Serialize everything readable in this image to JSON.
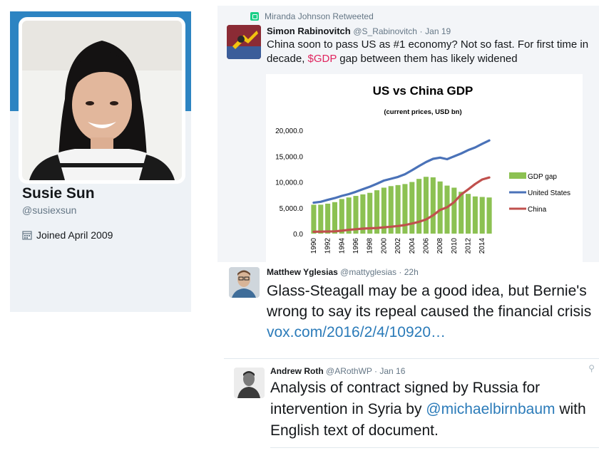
{
  "profile": {
    "name": "Susie Sun",
    "handle": "@susiexsun",
    "joined": "Joined April 2009",
    "banner_color": "#2d84c2"
  },
  "tweet1": {
    "retweet_label": "Miranda Johnson Retweeted",
    "author": "Simon Rabinovitch",
    "handle": "@S_Rabinovitch",
    "date": "Jan 19",
    "text_before": "China soon to pass US as #1 economy? Not so fast. For first time in decade, ",
    "cashtag": "$GDP",
    "text_after": " gap between them has likely widened",
    "cashtag_color": "#e0245e"
  },
  "tweet2": {
    "author": "Matthew Yglesias",
    "handle": "@mattyglesias",
    "date": "22h",
    "text": "Glass-Steagall may be a good idea, but Bernie's wrong to say its repeal caused the financial crisis ",
    "link": "vox.com/2016/2/4/10920…"
  },
  "tweet3": {
    "author": "Andrew Roth",
    "handle": "@ARothWP",
    "date": "Jan 16",
    "text_before": "Analysis of contract signed by Russia for intervention in Syria by ",
    "mention": "@michaelbirnbaum",
    "text_after": " with English text of document."
  },
  "chart_data": {
    "type": "bar",
    "title": "US vs China GDP",
    "subtitle": "(current prices, USD bn)",
    "x": [
      1990,
      1991,
      1992,
      1993,
      1994,
      1995,
      1996,
      1997,
      1998,
      1999,
      2000,
      2001,
      2002,
      2003,
      2004,
      2005,
      2006,
      2007,
      2008,
      2009,
      2010,
      2011,
      2012,
      2013,
      2014,
      2015
    ],
    "tick_labels": [
      "1990",
      "1992",
      "1994",
      "1996",
      "1998",
      "2000",
      "2002",
      "2004",
      "2006",
      "2008",
      "2010",
      "2012",
      "2014"
    ],
    "y_tick_labels": [
      "20,000.0",
      "15,000.0",
      "10,000.0",
      "5,000.0",
      "0.0"
    ],
    "ylim": [
      0,
      20000
    ],
    "legend_position": "right",
    "series": [
      {
        "name": "GDP gap",
        "type": "bar",
        "color": "#8cc152",
        "values": [
          5600,
          5600,
          5800,
          6100,
          6700,
          7000,
          7300,
          7600,
          7900,
          8400,
          8900,
          9200,
          9400,
          9600,
          10000,
          10600,
          11000,
          10900,
          10100,
          9300,
          8900,
          8100,
          7700,
          7200,
          7100,
          7000
        ]
      },
      {
        "name": "United States",
        "type": "line",
        "color": "#4a72b8",
        "values": [
          5980,
          6170,
          6540,
          6880,
          7310,
          7660,
          8100,
          8610,
          9090,
          9660,
          10280,
          10620,
          10980,
          11510,
          12270,
          13090,
          13860,
          14480,
          14720,
          14420,
          14960,
          15520,
          16160,
          16690,
          17390,
          18040
        ]
      },
      {
        "name": "China",
        "type": "line",
        "color": "#c0504d",
        "values": [
          360,
          380,
          420,
          440,
          560,
          730,
          860,
          960,
          1030,
          1090,
          1210,
          1340,
          1470,
          1660,
          1960,
          2290,
          2750,
          3550,
          4600,
          5110,
          6100,
          7570,
          8560,
          9610,
          10480,
          10870
        ]
      }
    ]
  }
}
